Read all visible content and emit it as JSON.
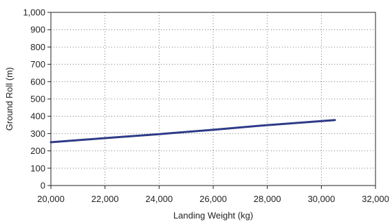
{
  "chart_data": {
    "type": "line",
    "title": "",
    "xlabel": "Landing Weight (kg)",
    "ylabel": "Ground Roll (m)",
    "xlim": [
      20000,
      32000
    ],
    "ylim": [
      0,
      1000
    ],
    "xticks": [
      20000,
      22000,
      24000,
      26000,
      28000,
      30000,
      32000
    ],
    "xtick_labels": [
      "20,000",
      "22,000",
      "24,000",
      "26,000",
      "28,000",
      "30,000",
      "32,000"
    ],
    "yticks": [
      0,
      100,
      200,
      300,
      400,
      500,
      600,
      700,
      800,
      900,
      1000
    ],
    "ytick_labels": [
      "0",
      "100",
      "200",
      "300",
      "400",
      "500",
      "600",
      "700",
      "800",
      "900",
      "1,000"
    ],
    "grid": true,
    "legend": "none",
    "series": [
      {
        "x": [
          20000,
          22000,
          24000,
          26000,
          28000,
          30500
        ],
        "y": [
          250,
          274,
          297,
          322,
          349,
          378
        ],
        "color": "#2e3a87"
      }
    ]
  }
}
